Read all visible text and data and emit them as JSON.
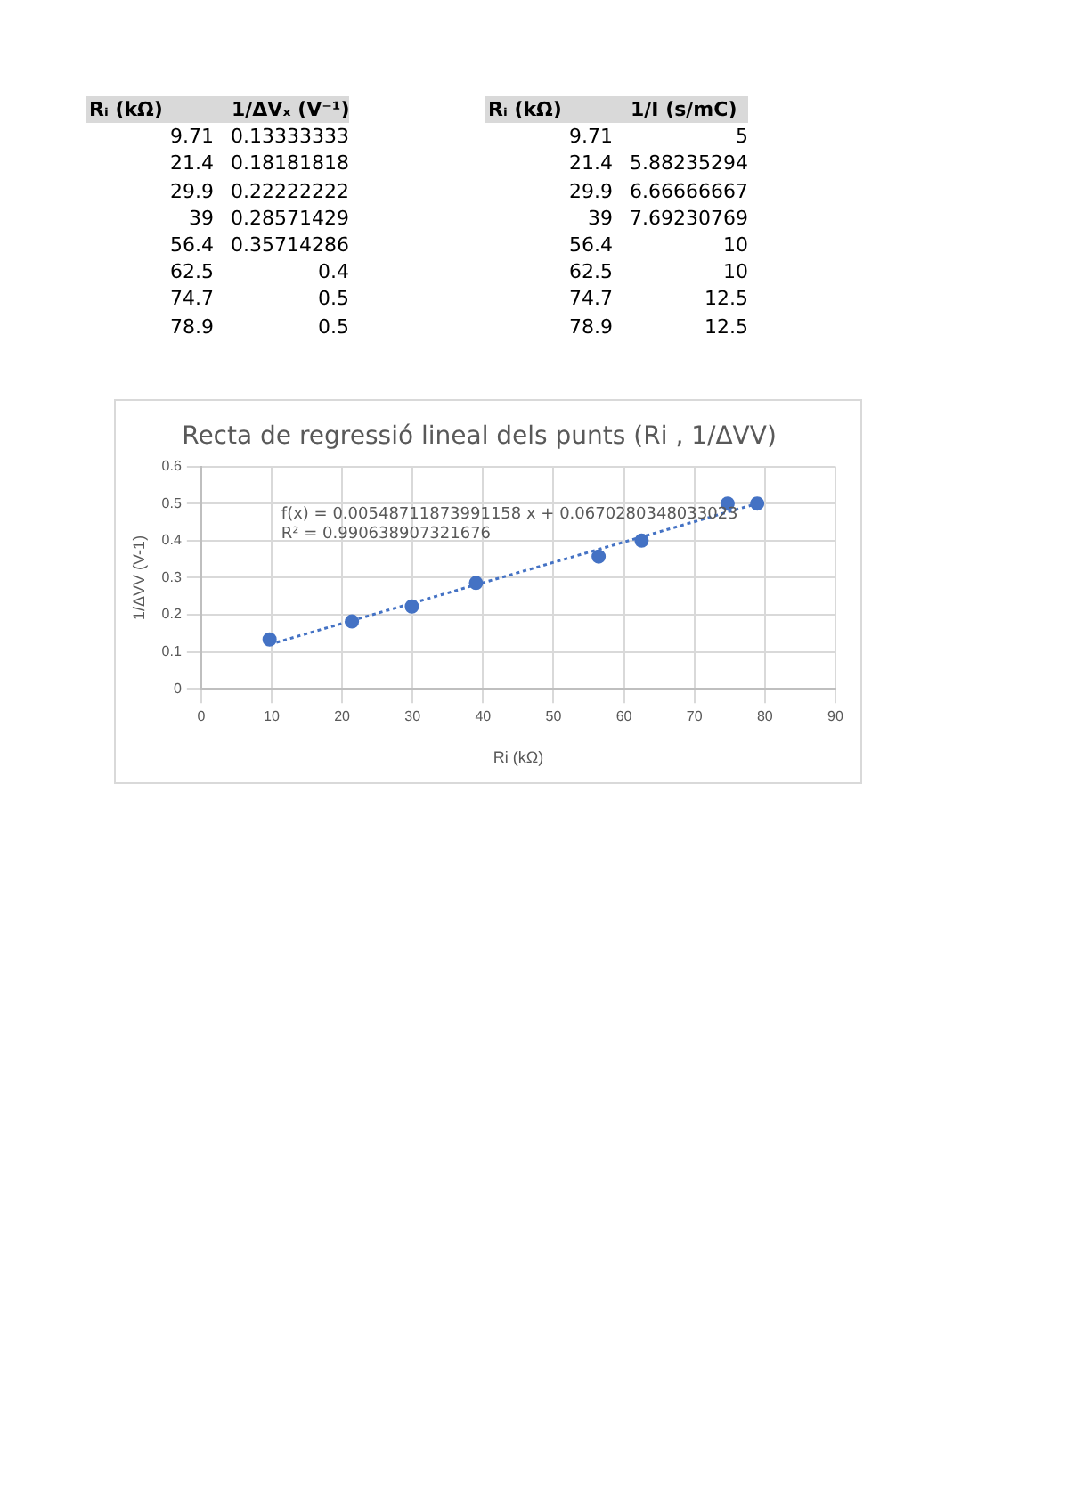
{
  "chart_data": [
    {
      "type": "other",
      "annotations": [
        "Rᵢ (kΩ)",
        "1/ΔVₓ (V⁻¹)",
        "9.71",
        "0.13333333",
        "21.4",
        "0.18181818",
        "29.9",
        "0.22222222",
        "39",
        "0.28571429",
        "56.4",
        "0.35714286",
        "62.5",
        "0.4",
        "74.7",
        "0.5",
        "78.9",
        "0.5"
      ]
    },
    {
      "type": "other",
      "annotations": [
        "Rᵢ (kΩ)",
        "1/I (s/mC)",
        "9.71",
        "5",
        "21.4",
        "5.88235294",
        "29.9",
        "6.66666667",
        "39",
        "7.69230769",
        "56.4",
        "10",
        "62.5",
        "10",
        "74.7",
        "12.5",
        "78.9",
        "12.5"
      ]
    },
    {
      "type": "scatter",
      "title": "Recta de regressió lineal dels punts (Ri , 1/ΔVV)",
      "xlabel": "Ri (kΩ)",
      "ylabel": "1/ΔVV (V-1)",
      "x": [
        9.71,
        21.4,
        29.9,
        39,
        56.4,
        62.5,
        74.7,
        78.9
      ],
      "series": [
        {
          "type": "scatter",
          "color": "#4472c4",
          "marker": "circle",
          "values": [
            0.13333333,
            0.18181818,
            0.22222222,
            0.28571429,
            0.35714286,
            0.4,
            0.5,
            0.5
          ]
        },
        {
          "type": "line",
          "color": "#4472c4",
          "line_style": "dotted",
          "marker": "none",
          "x": [
            9.71,
            78.9
          ],
          "values": [
            0.12,
            0.5
          ]
        }
      ],
      "xlim": [
        0,
        90
      ],
      "xticks": [
        0,
        10,
        20,
        30,
        40,
        50,
        60,
        70,
        80,
        90
      ],
      "ylim": [
        0,
        0.6
      ],
      "yticks": [
        0,
        0.1,
        0.2,
        0.3,
        0.4,
        0.5,
        0.6
      ],
      "grid": true,
      "legend": false,
      "annotations": [
        "f(x) = 0.00548711873991158 x + 0.0670280348033023",
        "R² = 0.990638907321676"
      ]
    }
  ]
}
